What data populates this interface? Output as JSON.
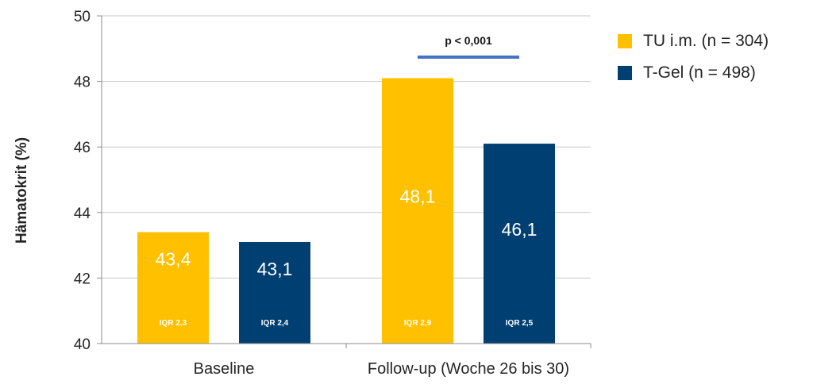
{
  "chart_data": {
    "type": "bar",
    "ylabel": "Hämatokrit (%)",
    "ylim": [
      40,
      50
    ],
    "yticks": [
      "40",
      "42",
      "44",
      "46",
      "48",
      "50"
    ],
    "categories": [
      "Baseline",
      "Follow-up (Woche 26 bis 30)"
    ],
    "series": [
      {
        "name": "TU i.m. (n = 304)",
        "color": "#FFC000",
        "values": [
          43.4,
          48.1
        ],
        "value_labels": [
          "43,4",
          "48,1"
        ],
        "iqr_labels": [
          "IQR 2,3",
          "IQR 2,9"
        ]
      },
      {
        "name": "T-Gel (n = 498)",
        "color": "#003F72",
        "values": [
          43.1,
          46.1
        ],
        "value_labels": [
          "43,1",
          "46,1"
        ],
        "iqr_labels": [
          "IQR 2,4",
          "IQR 2,5"
        ]
      }
    ],
    "annotation": {
      "text": "p < 0,001",
      "category": "Follow-up (Woche 26 bis 30)",
      "line_color": "#4472C4"
    },
    "grid": true,
    "legend_position": "right"
  }
}
